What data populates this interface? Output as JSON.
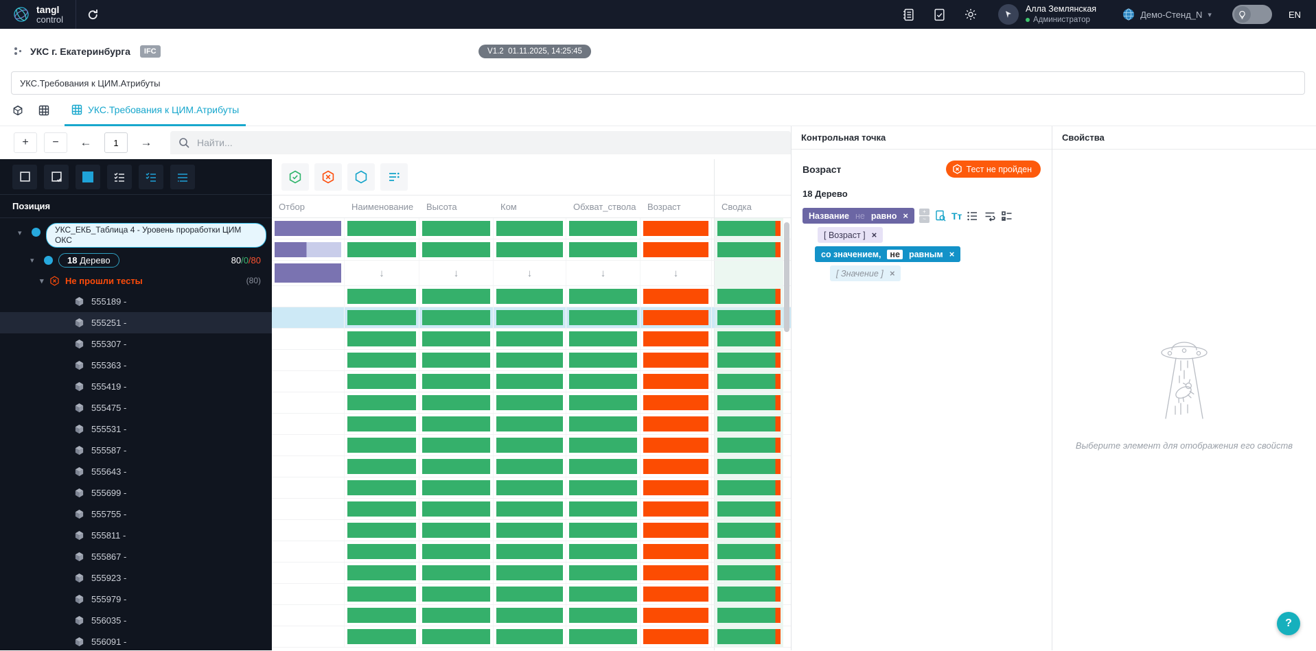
{
  "navbar": {
    "logo": {
      "line1": "tangl",
      "line2": "control"
    },
    "user": {
      "name": "Алла Землянская",
      "role": "Администратор"
    },
    "workspace": {
      "name": "Демо-Стенд_N"
    },
    "lang": "EN"
  },
  "header": {
    "project_name": "УКС г. Екатеринбурга",
    "format_badge": "IFC",
    "version_badge": "V1.2  01.11.2025, 14:25:45",
    "title_value": "УКС.Требования к ЦИМ.Атрибуты"
  },
  "tabs": {
    "active_label": "УКС.Требования к ЦИМ.Атрибуты"
  },
  "viewer_toolbar": {
    "zoom_in": "+",
    "zoom_out": "−",
    "prev": "←",
    "next": "→",
    "page_value": "1",
    "search_placeholder": "Найти..."
  },
  "tree": {
    "header": "Позиция",
    "root_label": "УКС_ЕКБ_Таблица 4 - Уровень проработки ЦИМ ОКС",
    "group_number": "18",
    "group_name": " Дерево",
    "counts": {
      "total": "80",
      "passed": "/0",
      "failed": "/80"
    },
    "failed_label": "Не прошли тесты",
    "failed_count": "(80)",
    "items": [
      "555189 -",
      "555251 -",
      "555307 -",
      "555363 -",
      "555419 -",
      "555475 -",
      "555531 -",
      "555587 -",
      "555643 -",
      "555699 -",
      "555755 -",
      "555811 -",
      "555867 -",
      "555923 -",
      "555979 -",
      "556035 -",
      "556091 -"
    ],
    "selected_item": "555251 -"
  },
  "table": {
    "columns": [
      "Отбор",
      "Наименование",
      "Высота",
      "Ком",
      "Обхват_ствола",
      "Возраст",
      "Сводка"
    ],
    "rows": [
      {
        "otbor": "full",
        "cells": "bars",
        "svodka": true,
        "selected": false
      },
      {
        "otbor": "split",
        "cells": "bars",
        "svodka": true,
        "selected": false
      },
      {
        "otbor": "full",
        "cells": "arrows",
        "svodka": false,
        "selected": false,
        "tall": true
      },
      {
        "otbor": "none",
        "cells": "bars",
        "svodka": true,
        "selected": false
      },
      {
        "otbor": "none",
        "cells": "bars",
        "svodka": true,
        "selected": true
      },
      {
        "otbor": "none",
        "cells": "bars",
        "svodka": true,
        "selected": false
      },
      {
        "otbor": "none",
        "cells": "bars",
        "svodka": true,
        "selected": false
      },
      {
        "otbor": "none",
        "cells": "bars",
        "svodka": true,
        "selected": false
      },
      {
        "otbor": "none",
        "cells": "bars",
        "svodka": true,
        "selected": false
      },
      {
        "otbor": "none",
        "cells": "bars",
        "svodka": true,
        "selected": false
      },
      {
        "otbor": "none",
        "cells": "bars",
        "svodka": true,
        "selected": false
      },
      {
        "otbor": "none",
        "cells": "bars",
        "svodka": true,
        "selected": false
      },
      {
        "otbor": "none",
        "cells": "bars",
        "svodka": true,
        "selected": false
      },
      {
        "otbor": "none",
        "cells": "bars",
        "svodka": true,
        "selected": false
      },
      {
        "otbor": "none",
        "cells": "bars",
        "svodka": true,
        "selected": false
      },
      {
        "otbor": "none",
        "cells": "bars",
        "svodka": true,
        "selected": false
      },
      {
        "otbor": "none",
        "cells": "bars",
        "svodka": true,
        "selected": false
      },
      {
        "otbor": "none",
        "cells": "bars",
        "svodka": true,
        "selected": false
      },
      {
        "otbor": "none",
        "cells": "bars",
        "svodka": true,
        "selected": false
      },
      {
        "otbor": "none",
        "cells": "bars",
        "svodka": true,
        "selected": false
      }
    ]
  },
  "checkpoint": {
    "title": "Контрольная точка",
    "attribute": "Возраст",
    "status_label": "Тест не пройден",
    "group_label": "18 Дерево",
    "rule_chip": {
      "field": "Название",
      "negation": "не",
      "operator": "равно"
    },
    "attribute_chip": "[ Возраст ]",
    "value_operator_chip": {
      "prefix": "со значением,",
      "negation": "не",
      "suffix": "равным"
    },
    "value_chip": "[ Значение ]",
    "text_tool_label": "Tт",
    "mini_add": "+",
    "mini_tilde": "~"
  },
  "properties": {
    "title": "Свойства",
    "empty_text": "Выберите элемент для отображения его свойств"
  },
  "help_button": "?",
  "colors": {
    "accent": "#18a7cd",
    "green": "#35b06b",
    "orange": "#fc4c02",
    "purple": "#7a73b1",
    "status_orange": "#fd5a0c",
    "selected_row": "#cde9f6"
  }
}
